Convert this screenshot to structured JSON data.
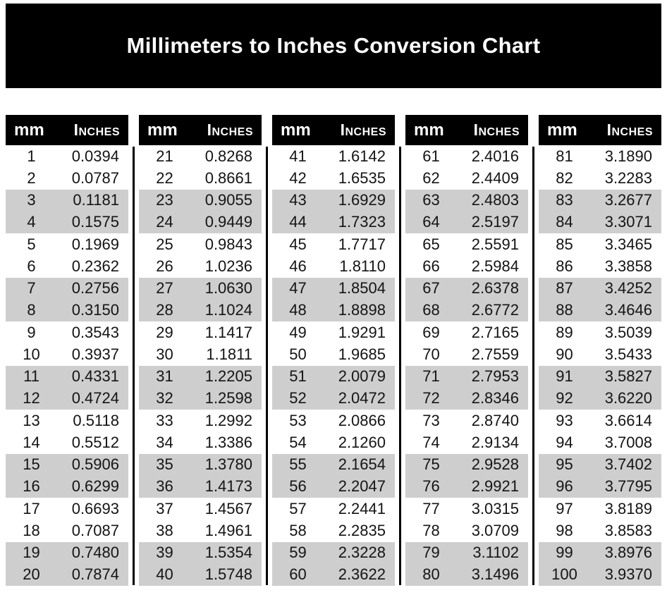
{
  "title": "Millimeters to Inches Conversion Chart",
  "column_headers": {
    "mm": "mm",
    "inches": "Inches"
  },
  "colors": {
    "page_bg": "#ffffff",
    "banner_bg": "#000000",
    "header_bg": "#000000",
    "header_text": "#ffffff",
    "body_text": "#141414",
    "stripe": "#cecece",
    "divider": "#000000"
  },
  "chart_data": {
    "type": "table",
    "title": "Millimeters to Inches Conversion Chart",
    "columns": [
      {
        "rows": [
          {
            "mm": "1",
            "in": "0.0394"
          },
          {
            "mm": "2",
            "in": "0.0787"
          },
          {
            "mm": "3",
            "in": "0.1181"
          },
          {
            "mm": "4",
            "in": "0.1575"
          },
          {
            "mm": "5",
            "in": "0.1969"
          },
          {
            "mm": "6",
            "in": "0.2362"
          },
          {
            "mm": "7",
            "in": "0.2756"
          },
          {
            "mm": "8",
            "in": "0.3150"
          },
          {
            "mm": "9",
            "in": "0.3543"
          },
          {
            "mm": "10",
            "in": "0.3937"
          },
          {
            "mm": "11",
            "in": "0.4331"
          },
          {
            "mm": "12",
            "in": "0.4724"
          },
          {
            "mm": "13",
            "in": "0.5118"
          },
          {
            "mm": "14",
            "in": "0.5512"
          },
          {
            "mm": "15",
            "in": "0.5906"
          },
          {
            "mm": "16",
            "in": "0.6299"
          },
          {
            "mm": "17",
            "in": "0.6693"
          },
          {
            "mm": "18",
            "in": "0.7087"
          },
          {
            "mm": "19",
            "in": "0.7480"
          },
          {
            "mm": "20",
            "in": "0.7874"
          }
        ]
      },
      {
        "rows": [
          {
            "mm": "21",
            "in": "0.8268"
          },
          {
            "mm": "22",
            "in": "0.8661"
          },
          {
            "mm": "23",
            "in": "0.9055"
          },
          {
            "mm": "24",
            "in": "0.9449"
          },
          {
            "mm": "25",
            "in": "0.9843"
          },
          {
            "mm": "26",
            "in": "1.0236"
          },
          {
            "mm": "27",
            "in": "1.0630"
          },
          {
            "mm": "28",
            "in": "1.1024"
          },
          {
            "mm": "29",
            "in": "1.1417"
          },
          {
            "mm": "30",
            "in": "1.1811"
          },
          {
            "mm": "31",
            "in": "1.2205"
          },
          {
            "mm": "32",
            "in": "1.2598"
          },
          {
            "mm": "33",
            "in": "1.2992"
          },
          {
            "mm": "34",
            "in": "1.3386"
          },
          {
            "mm": "35",
            "in": "1.3780"
          },
          {
            "mm": "36",
            "in": "1.4173"
          },
          {
            "mm": "37",
            "in": "1.4567"
          },
          {
            "mm": "38",
            "in": "1.4961"
          },
          {
            "mm": "39",
            "in": "1.5354"
          },
          {
            "mm": "40",
            "in": "1.5748"
          }
        ]
      },
      {
        "rows": [
          {
            "mm": "41",
            "in": "1.6142"
          },
          {
            "mm": "42",
            "in": "1.6535"
          },
          {
            "mm": "43",
            "in": "1.6929"
          },
          {
            "mm": "44",
            "in": "1.7323"
          },
          {
            "mm": "45",
            "in": "1.7717"
          },
          {
            "mm": "46",
            "in": "1.8110"
          },
          {
            "mm": "47",
            "in": "1.8504"
          },
          {
            "mm": "48",
            "in": "1.8898"
          },
          {
            "mm": "49",
            "in": "1.9291"
          },
          {
            "mm": "50",
            "in": "1.9685"
          },
          {
            "mm": "51",
            "in": "2.0079"
          },
          {
            "mm": "52",
            "in": "2.0472"
          },
          {
            "mm": "53",
            "in": "2.0866"
          },
          {
            "mm": "54",
            "in": "2.1260"
          },
          {
            "mm": "55",
            "in": "2.1654"
          },
          {
            "mm": "56",
            "in": "2.2047"
          },
          {
            "mm": "57",
            "in": "2.2441"
          },
          {
            "mm": "58",
            "in": "2.2835"
          },
          {
            "mm": "59",
            "in": "2.3228"
          },
          {
            "mm": "60",
            "in": "2.3622"
          }
        ]
      },
      {
        "rows": [
          {
            "mm": "61",
            "in": "2.4016"
          },
          {
            "mm": "62",
            "in": "2.4409"
          },
          {
            "mm": "63",
            "in": "2.4803"
          },
          {
            "mm": "64",
            "in": "2.5197"
          },
          {
            "mm": "65",
            "in": "2.5591"
          },
          {
            "mm": "66",
            "in": "2.5984"
          },
          {
            "mm": "67",
            "in": "2.6378"
          },
          {
            "mm": "68",
            "in": "2.6772"
          },
          {
            "mm": "69",
            "in": "2.7165"
          },
          {
            "mm": "70",
            "in": "2.7559"
          },
          {
            "mm": "71",
            "in": "2.7953"
          },
          {
            "mm": "72",
            "in": "2.8346"
          },
          {
            "mm": "73",
            "in": "2.8740"
          },
          {
            "mm": "74",
            "in": "2.9134"
          },
          {
            "mm": "75",
            "in": "2.9528"
          },
          {
            "mm": "76",
            "in": "2.9921"
          },
          {
            "mm": "77",
            "in": "3.0315"
          },
          {
            "mm": "78",
            "in": "3.0709"
          },
          {
            "mm": "79",
            "in": "3.1102"
          },
          {
            "mm": "80",
            "in": "3.1496"
          }
        ]
      },
      {
        "rows": [
          {
            "mm": "81",
            "in": "3.1890"
          },
          {
            "mm": "82",
            "in": "3.2283"
          },
          {
            "mm": "83",
            "in": "3.2677"
          },
          {
            "mm": "84",
            "in": "3.3071"
          },
          {
            "mm": "85",
            "in": "3.3465"
          },
          {
            "mm": "86",
            "in": "3.3858"
          },
          {
            "mm": "87",
            "in": "3.4252"
          },
          {
            "mm": "88",
            "in": "3.4646"
          },
          {
            "mm": "89",
            "in": "3.5039"
          },
          {
            "mm": "90",
            "in": "3.5433"
          },
          {
            "mm": "91",
            "in": "3.5827"
          },
          {
            "mm": "92",
            "in": "3.6220"
          },
          {
            "mm": "93",
            "in": "3.6614"
          },
          {
            "mm": "94",
            "in": "3.7008"
          },
          {
            "mm": "95",
            "in": "3.7402"
          },
          {
            "mm": "96",
            "in": "3.7795"
          },
          {
            "mm": "97",
            "in": "3.8189"
          },
          {
            "mm": "98",
            "in": "3.8583"
          },
          {
            "mm": "99",
            "in": "3.8976"
          },
          {
            "mm": "100",
            "in": "3.9370"
          }
        ]
      }
    ]
  }
}
